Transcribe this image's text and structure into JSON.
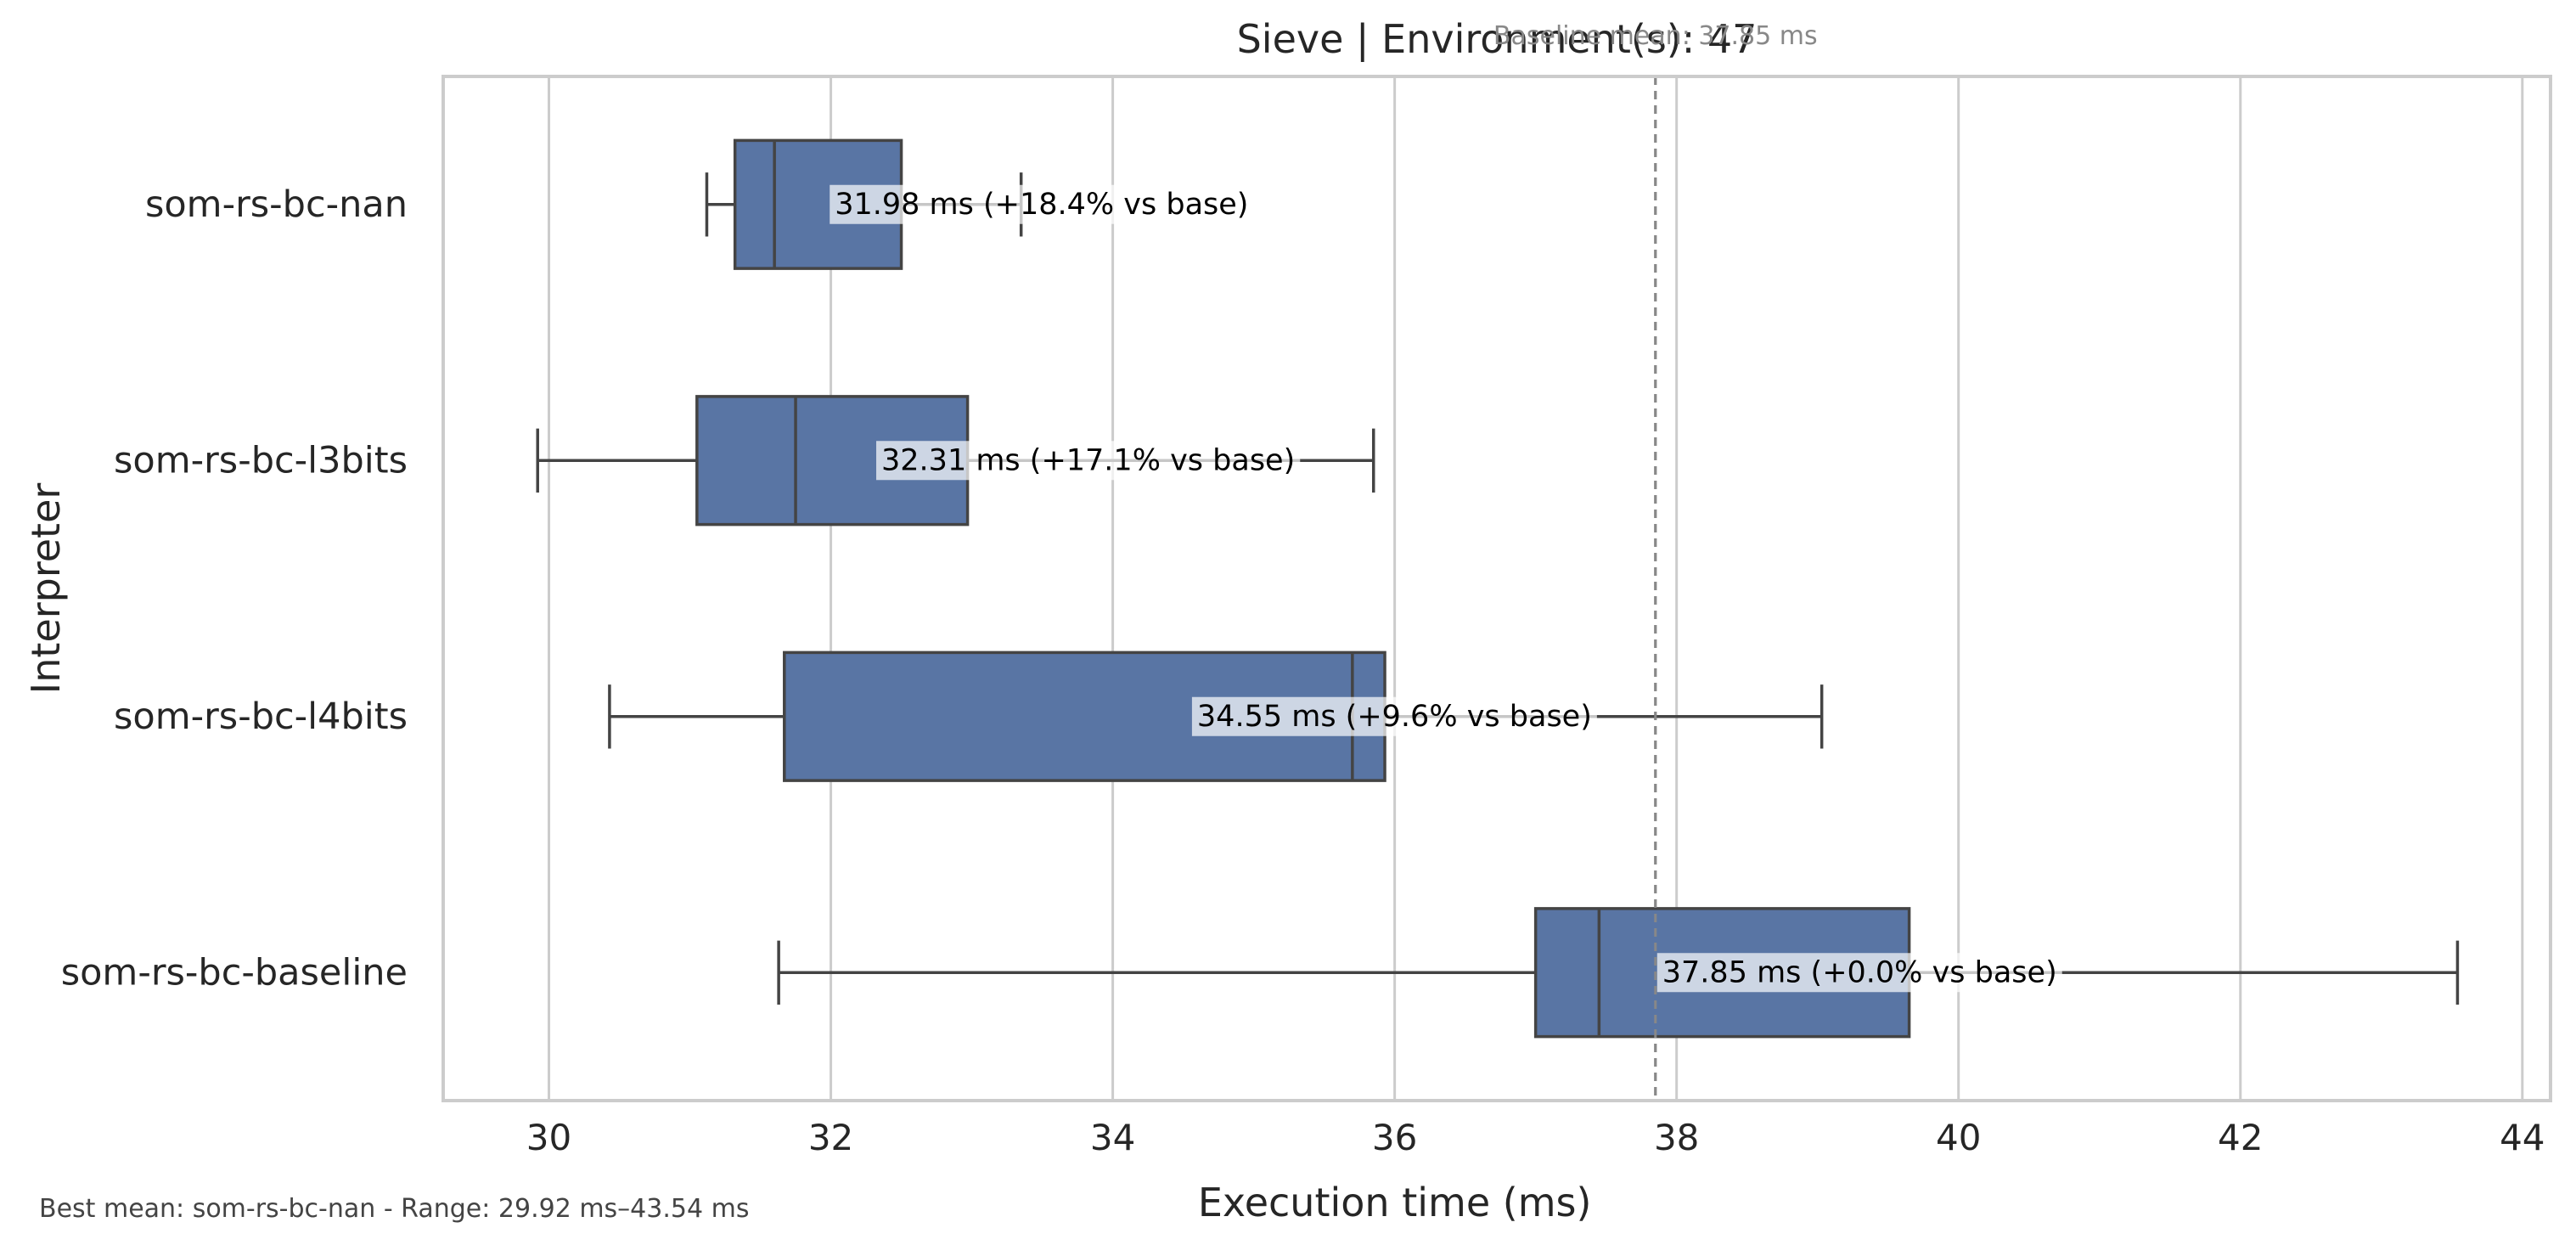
{
  "chart_data": {
    "type": "boxplot",
    "title": "Sieve | Environment(s): 47",
    "xlabel": "Execution time (ms)",
    "ylabel": "Interpreter",
    "xlim": [
      29.25,
      44.2
    ],
    "x_ticks": [
      30,
      32,
      34,
      36,
      38,
      40,
      42,
      44
    ],
    "grid": "vertical",
    "box_color": "#5975a4",
    "line_color": "#444444",
    "baseline_color": "#888888",
    "baseline": {
      "value": 37.85,
      "label": "Baseline mean: 37.85 ms"
    },
    "categories": [
      "som-rs-bc-nan",
      "som-rs-bc-l3bits",
      "som-rs-bc-l4bits",
      "som-rs-bc-baseline"
    ],
    "series": [
      {
        "name": "som-rs-bc-nan",
        "whisker_low": 31.12,
        "q1": 31.32,
        "median": 31.6,
        "q3": 32.5,
        "whisker_high": 33.35,
        "mean": 31.98,
        "annotation": "31.98 ms  (+18.4% vs base)"
      },
      {
        "name": "som-rs-bc-l3bits",
        "whisker_low": 29.92,
        "q1": 31.05,
        "median": 31.75,
        "q3": 32.97,
        "whisker_high": 35.85,
        "mean": 32.31,
        "annotation": "32.31 ms  (+17.1% vs base)"
      },
      {
        "name": "som-rs-bc-l4bits",
        "whisker_low": 30.43,
        "q1": 31.67,
        "median": 35.7,
        "q3": 35.93,
        "whisker_high": 39.03,
        "mean": 34.55,
        "annotation": "34.55 ms  (+9.6% vs base)"
      },
      {
        "name": "som-rs-bc-baseline",
        "whisker_low": 31.63,
        "q1": 37.0,
        "median": 37.45,
        "q3": 39.65,
        "whisker_high": 43.54,
        "mean": 37.85,
        "annotation": "37.85 ms  (+0.0% vs base)"
      }
    ]
  },
  "footnote": "Best mean: som-rs-bc-nan - Range: 29.92 ms–43.54 ms"
}
